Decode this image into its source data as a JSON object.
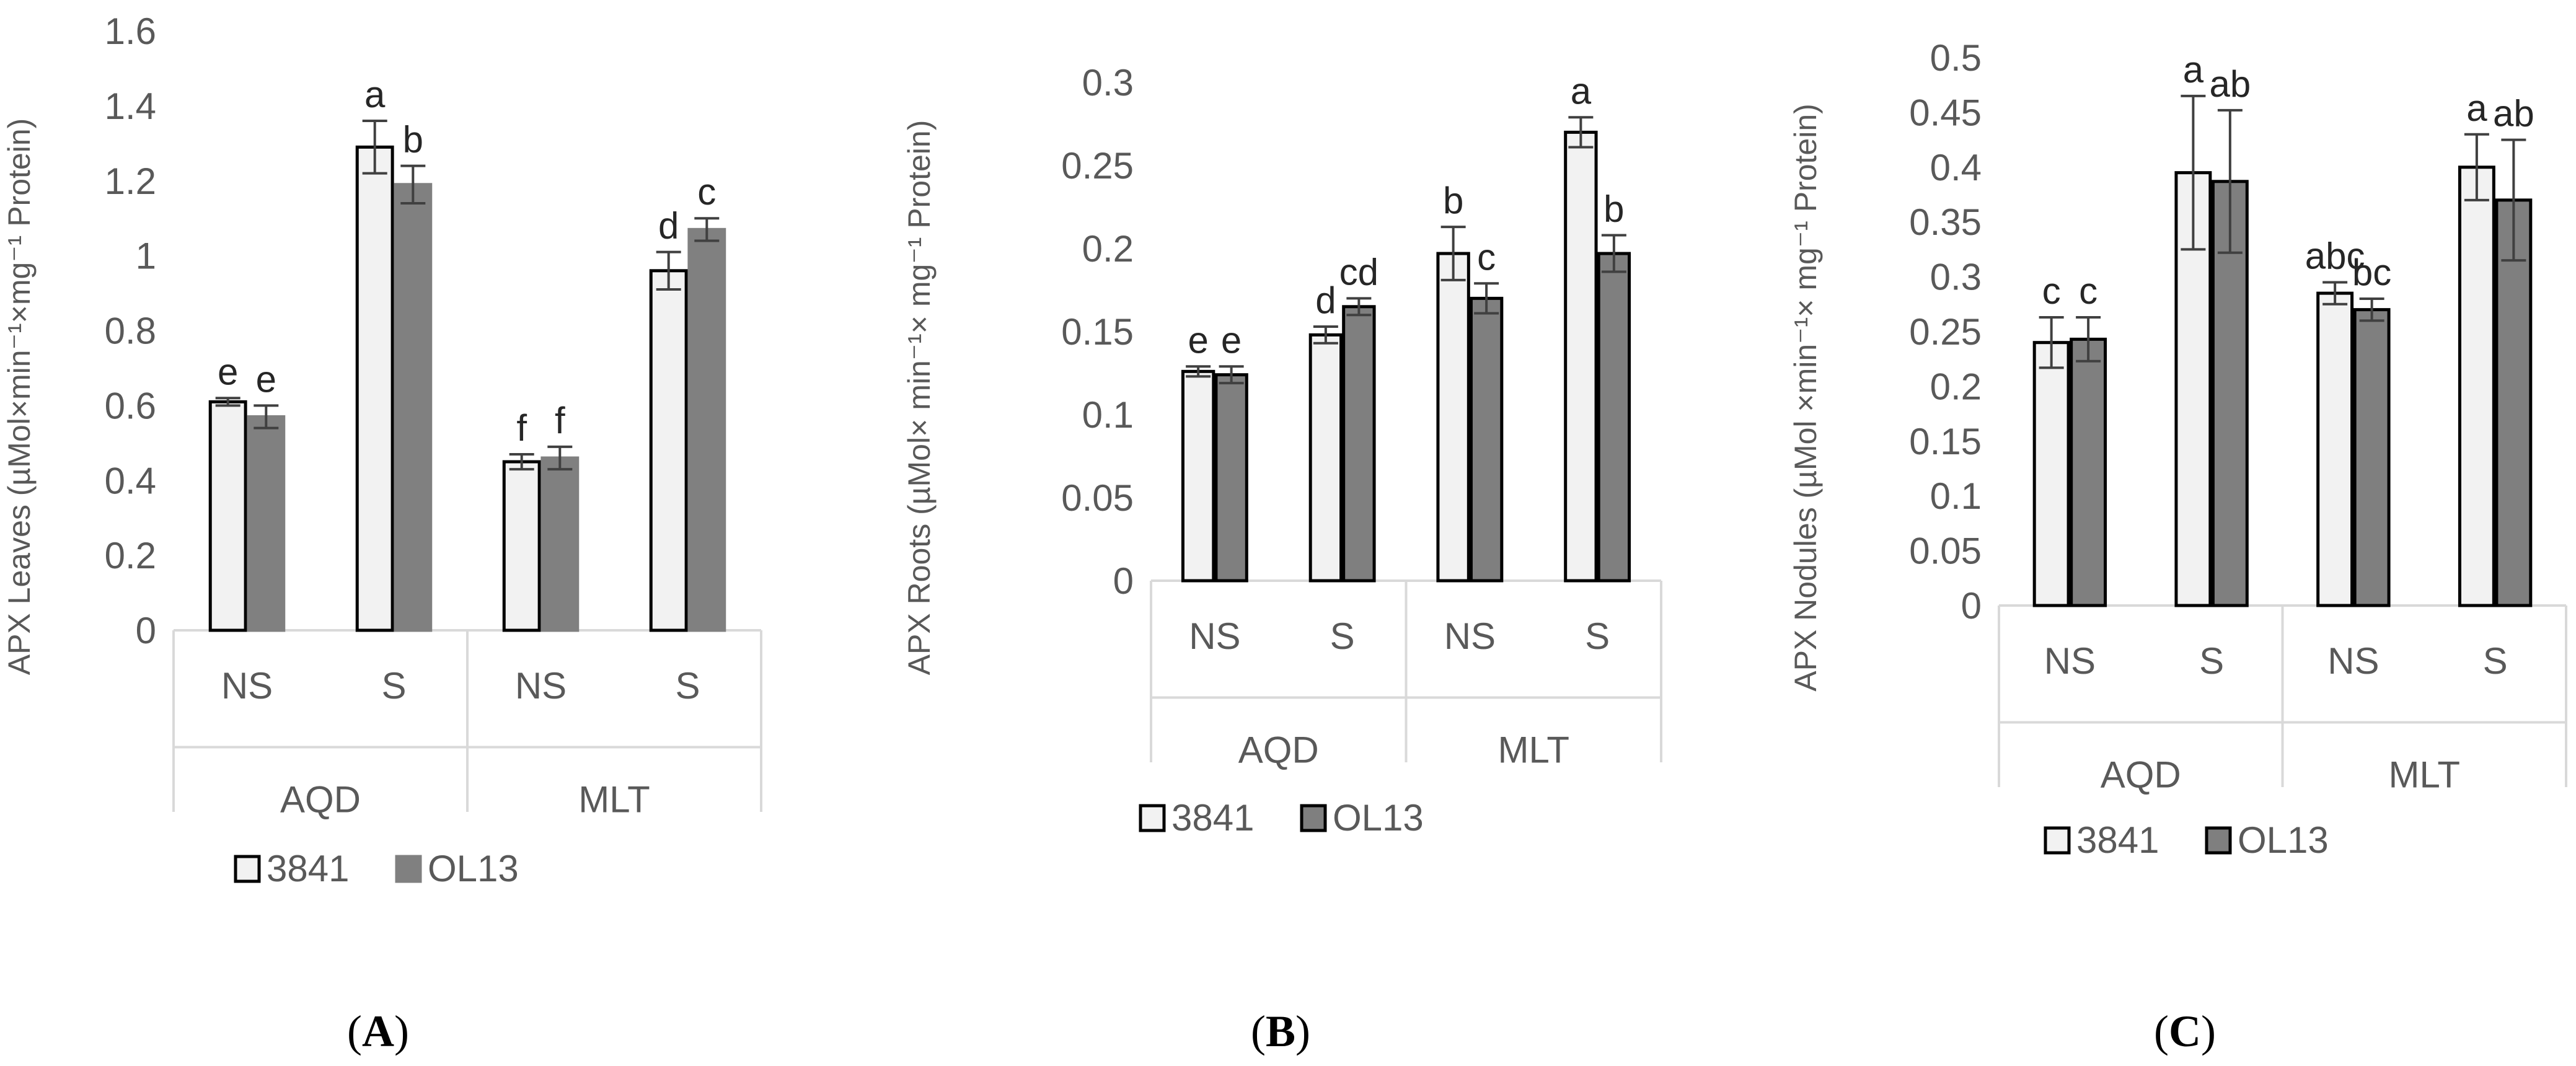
{
  "colors": {
    "series1": "#f2f2f2",
    "series2_A": "#808080",
    "series2_BC": "#7f7f7f",
    "axis": "#d9d9d9",
    "error": "#404040"
  },
  "legend": [
    "3841",
    "OL13"
  ],
  "chart_data": [
    {
      "type": "bar",
      "panel_label": "A",
      "ylabel": "APX Leaves (µMol×min⁻¹×mg⁻¹ Protein)",
      "yticks": [
        "0",
        "0.2",
        "0.4",
        "0.6",
        "0.8",
        "1",
        "1.2",
        "1.4",
        "1.6"
      ],
      "ylim": [
        0,
        1.6
      ],
      "groups": [
        "AQD",
        "MLT"
      ],
      "categories": [
        "NS",
        "S",
        "NS",
        "S"
      ],
      "series": [
        {
          "name": "3841",
          "values": [
            0.61,
            1.29,
            0.45,
            0.96
          ],
          "errors": [
            0.01,
            0.07,
            0.02,
            0.05
          ],
          "letters": [
            "e",
            "a",
            "f",
            "d"
          ]
        },
        {
          "name": "OL13",
          "values": [
            0.57,
            1.19,
            0.46,
            1.07
          ],
          "errors": [
            0.03,
            0.05,
            0.03,
            0.03
          ],
          "letters": [
            "e",
            "b",
            "f",
            "c"
          ]
        }
      ]
    },
    {
      "type": "bar",
      "panel_label": "B",
      "ylabel": "APX Roots (µMol× min⁻¹× mg⁻¹ Protein)",
      "yticks": [
        "0",
        "0.05",
        "0.1",
        "0.15",
        "0.2",
        "0.25",
        "0.3"
      ],
      "ylim": [
        0,
        0.3
      ],
      "groups": [
        "AQD",
        "MLT"
      ],
      "categories": [
        "NS",
        "S",
        "NS",
        "S"
      ],
      "series": [
        {
          "name": "3841",
          "values": [
            0.126,
            0.148,
            0.197,
            0.27
          ],
          "errors": [
            0.003,
            0.005,
            0.016,
            0.009
          ],
          "letters": [
            "e",
            "d",
            "b",
            "a"
          ]
        },
        {
          "name": "OL13",
          "values": [
            0.124,
            0.165,
            0.17,
            0.197
          ],
          "errors": [
            0.005,
            0.005,
            0.009,
            0.011
          ],
          "letters": [
            "e",
            "cd",
            "c",
            "b"
          ]
        }
      ]
    },
    {
      "type": "bar",
      "panel_label": "C",
      "ylabel": "APX Nodules (µMol ×min⁻¹× mg⁻¹ Protein)",
      "yticks": [
        "0",
        "0.05",
        "0.1",
        "0.15",
        "0.2",
        "0.25",
        "0.3",
        "0.35",
        "0.4",
        "0.45",
        "0.5"
      ],
      "ylim": [
        0,
        0.5
      ],
      "groups": [
        "AQD",
        "MLT"
      ],
      "categories": [
        "NS",
        "S",
        "NS",
        "S"
      ],
      "series": [
        {
          "name": "3841",
          "values": [
            0.24,
            0.395,
            0.285,
            0.4
          ],
          "errors": [
            0.023,
            0.07,
            0.01,
            0.03
          ],
          "letters": [
            "c",
            "a",
            "abc",
            "a"
          ]
        },
        {
          "name": "OL13",
          "values": [
            0.243,
            0.387,
            0.27,
            0.37
          ],
          "errors": [
            0.02,
            0.065,
            0.01,
            0.055
          ],
          "letters": [
            "c",
            "ab",
            "bc",
            "ab"
          ]
        }
      ]
    }
  ]
}
